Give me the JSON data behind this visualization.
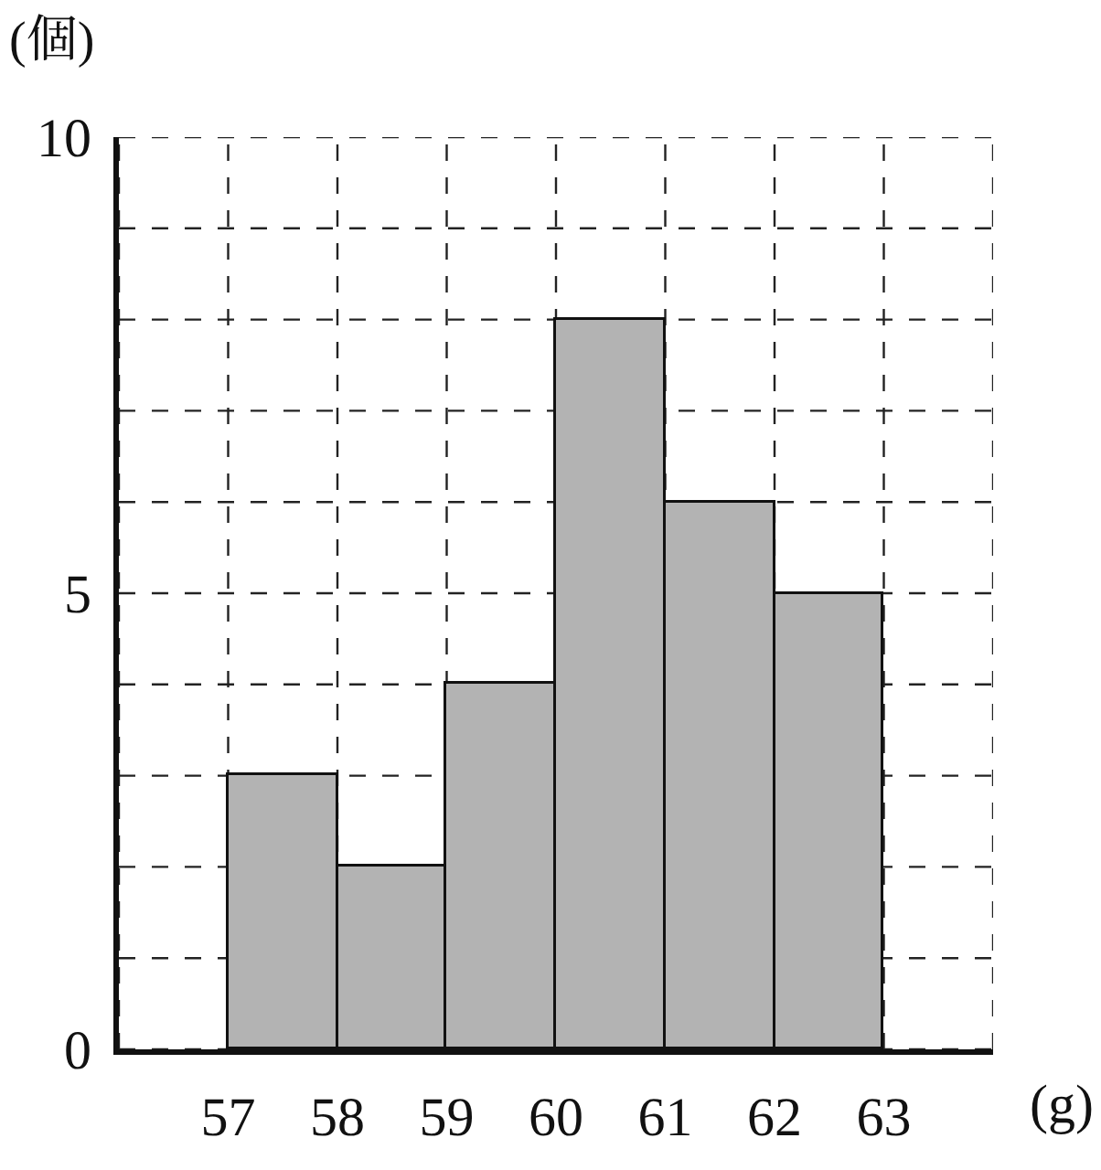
{
  "chart_data": {
    "type": "histogram",
    "xlabel": "(g)",
    "ylabel": "(個)",
    "bins": [
      57,
      58,
      59,
      60,
      61,
      62,
      63
    ],
    "values": [
      3,
      2,
      4,
      8,
      6,
      5
    ],
    "color": "#b3b3b3",
    "xlim": [
      56,
      64
    ],
    "ylim": [
      0,
      10
    ],
    "xticks": [
      {
        "value": 56,
        "label": null
      },
      57,
      58,
      59,
      60,
      61,
      62,
      63,
      {
        "value": 64,
        "label": null
      }
    ],
    "yticks": [
      0,
      {
        "value": 1,
        "label": null
      },
      {
        "value": 2,
        "label": null
      },
      {
        "value": 3,
        "label": null
      },
      {
        "value": 4,
        "label": null
      },
      5,
      {
        "value": 6,
        "label": null
      },
      {
        "value": 7,
        "label": null
      },
      {
        "value": 8,
        "label": null
      },
      {
        "value": 9,
        "label": null
      },
      10
    ],
    "grid": true
  }
}
